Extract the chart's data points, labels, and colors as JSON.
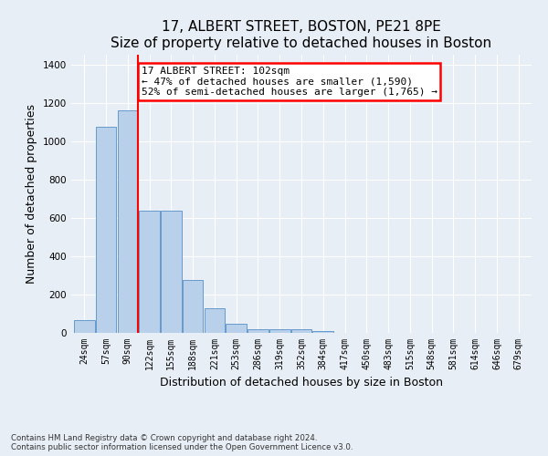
{
  "title": "17, ALBERT STREET, BOSTON, PE21 8PE",
  "subtitle": "Size of property relative to detached houses in Boston",
  "xlabel": "Distribution of detached houses by size in Boston",
  "ylabel": "Number of detached properties",
  "footnote1": "Contains HM Land Registry data © Crown copyright and database right 2024.",
  "footnote2": "Contains public sector information licensed under the Open Government Licence v3.0.",
  "annotation_line1": "17 ALBERT STREET: 102sqm",
  "annotation_line2": "← 47% of detached houses are smaller (1,590)",
  "annotation_line3": "52% of semi-detached houses are larger (1,765) →",
  "bar_labels": [
    "24sqm",
    "57sqm",
    "90sqm",
    "122sqm",
    "155sqm",
    "188sqm",
    "221sqm",
    "253sqm",
    "286sqm",
    "319sqm",
    "352sqm",
    "384sqm",
    "417sqm",
    "450sqm",
    "483sqm",
    "515sqm",
    "548sqm",
    "581sqm",
    "614sqm",
    "646sqm",
    "679sqm"
  ],
  "bar_values": [
    68,
    1075,
    1160,
    635,
    635,
    275,
    130,
    48,
    20,
    20,
    20,
    10,
    0,
    0,
    0,
    0,
    0,
    0,
    0,
    0,
    0
  ],
  "bar_color": "#b8d0ea",
  "bar_edge_color": "#6699cc",
  "red_line_x": 2.47,
  "ylim": [
    0,
    1450
  ],
  "yticks": [
    0,
    200,
    400,
    600,
    800,
    1000,
    1200,
    1400
  ],
  "bg_color": "#e8eef5",
  "grid_color": "#ffffff",
  "title_fontsize": 11,
  "subtitle_fontsize": 9.5,
  "axis_label_fontsize": 9,
  "tick_fontsize": 7,
  "annotation_fontsize": 8
}
